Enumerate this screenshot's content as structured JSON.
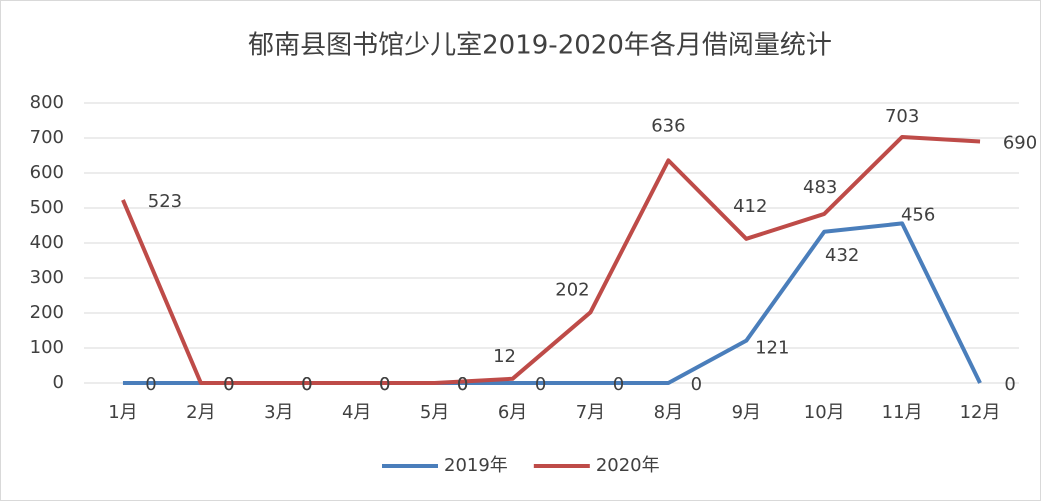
{
  "chart_data": {
    "type": "line",
    "title": "郁南县图书馆少儿室2019-2020年各月借阅量统计",
    "categories": [
      "1月",
      "2月",
      "3月",
      "4月",
      "5月",
      "6月",
      "7月",
      "8月",
      "9月",
      "10月",
      "11月",
      "12月"
    ],
    "series": [
      {
        "name": "2019年",
        "color": "#4a7ebb",
        "values": [
          0,
          0,
          0,
          0,
          0,
          0,
          0,
          0,
          121,
          432,
          456,
          0
        ]
      },
      {
        "name": "2020年",
        "color": "#be4b48",
        "values": [
          523,
          0,
          0,
          0,
          0,
          12,
          202,
          636,
          412,
          483,
          703,
          690
        ]
      }
    ],
    "ylim": [
      0,
      800
    ],
    "yticks": [
      0,
      100,
      200,
      300,
      400,
      500,
      600,
      700,
      800
    ],
    "grid": true,
    "legend": "bottom"
  }
}
